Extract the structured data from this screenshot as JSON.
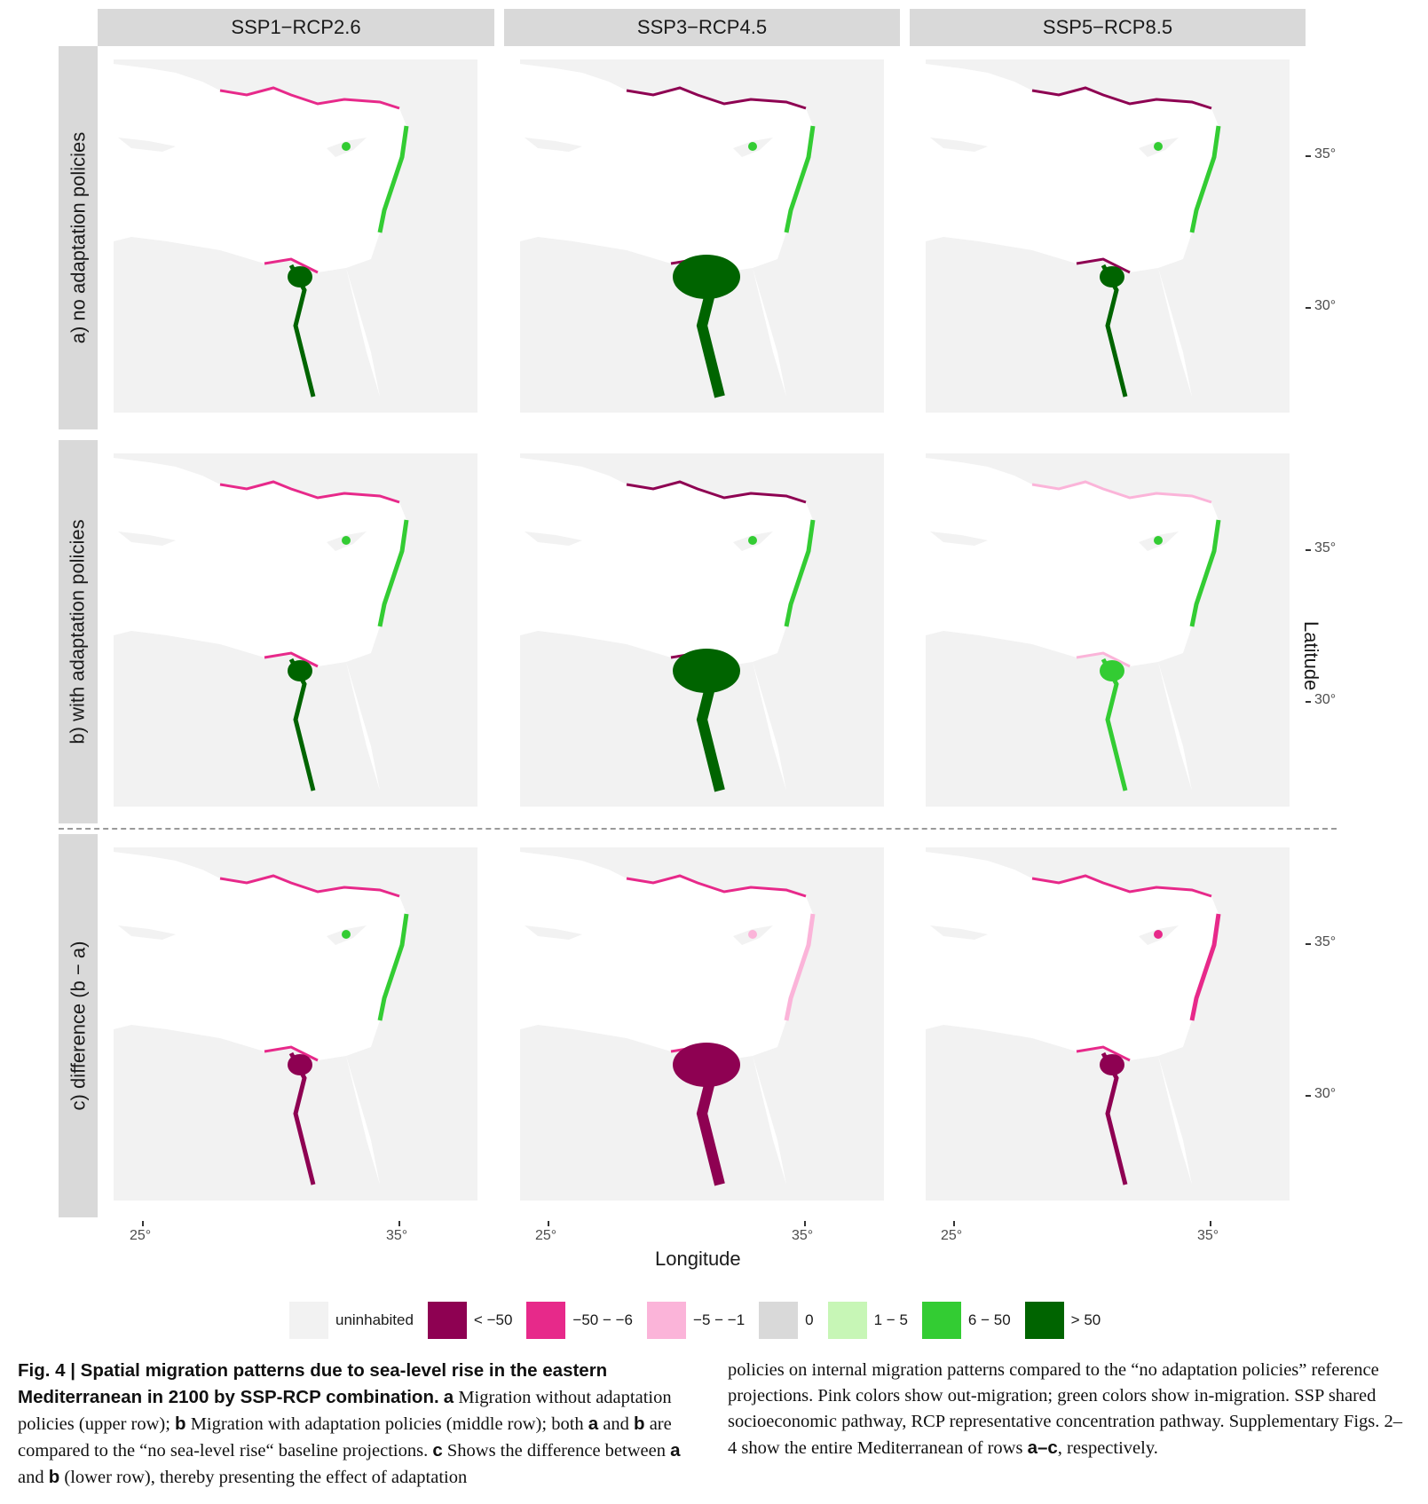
{
  "figure": {
    "columns": [
      "SSP1−RCP2.6",
      "SSP3−RCP4.5",
      "SSP5−RCP8.5"
    ],
    "rows": [
      "a) no adaptation policies",
      "b) with adaptation policies",
      "c) difference (b − a)"
    ],
    "x_axis": {
      "title": "Longitude",
      "ticks": [
        "25°",
        "35°"
      ]
    },
    "y_axis": {
      "title": "Latitude",
      "ticks": [
        "35°",
        "30°"
      ]
    },
    "legend": [
      {
        "label": "uninhabited",
        "color": "#f2f2f2"
      },
      {
        "label": "< −50",
        "color": "#8e0152"
      },
      {
        "label": "−50 − −6",
        "color": "#e7298a"
      },
      {
        "label": "−5 − −1",
        "color": "#fbb4d9"
      },
      {
        "label": "0",
        "color": "#d9d9d9"
      },
      {
        "label": "1 − 5",
        "color": "#c7f6b6"
      },
      {
        "label": "6 − 50",
        "color": "#33cc33"
      },
      {
        "label": "> 50",
        "color": "#006400"
      }
    ]
  },
  "caption": {
    "left_bold": "Fig. 4 | Spatial migration patterns due to sea-level rise in the eastern Mediterranean in 2100 by SSP-RCP combination.",
    "left_text_1": " ",
    "a1": "a",
    "left_text_2": " Migration without adaptation policies (upper row); ",
    "b1": "b",
    "left_text_3": " Migration with adaptation policies (middle row); both ",
    "a2": "a",
    "left_text_4": " and ",
    "b2": "b",
    "left_text_5": " are compared to the “no sea-level rise“ baseline projections. ",
    "c1": "c",
    "left_text_6": " Shows the difference between ",
    "a3": "a",
    "left_text_7": " and ",
    "b3": "b",
    "left_text_8": " (lower row), thereby presenting the effect of adaptation",
    "right_text_1": "policies on internal migration patterns compared to the “no adaptation policies” reference projections. Pink colors show out-migration; green colors show in-migration. SSP shared socioeconomic pathway, RCP representative concentration pathway. Supplementary Figs. 2–4 show the entire Mediterranean of rows ",
    "ac": "a–c",
    "right_text_2": ", respectively."
  }
}
